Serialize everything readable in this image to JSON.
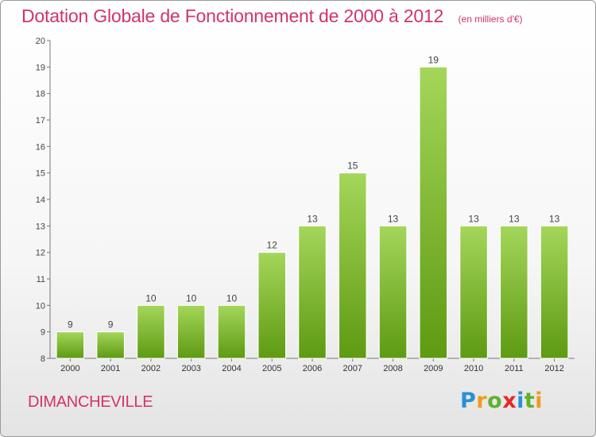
{
  "title": "Dotation Globale de Fonctionnement de 2000 à 2012",
  "unit_note": "(en milliers d'€)",
  "commune": "DIMANCHEVILLE",
  "logo_text": "Proxiti",
  "colors": {
    "accent_text": "#d2336d",
    "bar_top": "#a4d65a",
    "bar_bottom": "#5e9a12"
  },
  "chart_data": {
    "type": "bar",
    "categories": [
      "2000",
      "2001",
      "2002",
      "2003",
      "2004",
      "2005",
      "2006",
      "2007",
      "2008",
      "2009",
      "2010",
      "2011",
      "2012"
    ],
    "values": [
      9,
      9,
      10,
      10,
      10,
      12,
      13,
      15,
      13,
      19,
      13,
      13,
      13
    ],
    "data_labels": [
      "9",
      "9",
      "10",
      "10",
      "10",
      "12",
      "13",
      "15",
      "13",
      "19",
      "13",
      "13",
      "13"
    ],
    "title": "Dotation Globale de Fonctionnement de 2000 à 2012",
    "xlabel": "",
    "ylabel": "",
    "ylim": [
      8,
      20
    ],
    "yticks": [
      8,
      9,
      10,
      11,
      12,
      13,
      14,
      15,
      16,
      17,
      18,
      19,
      20
    ],
    "grid": false
  }
}
